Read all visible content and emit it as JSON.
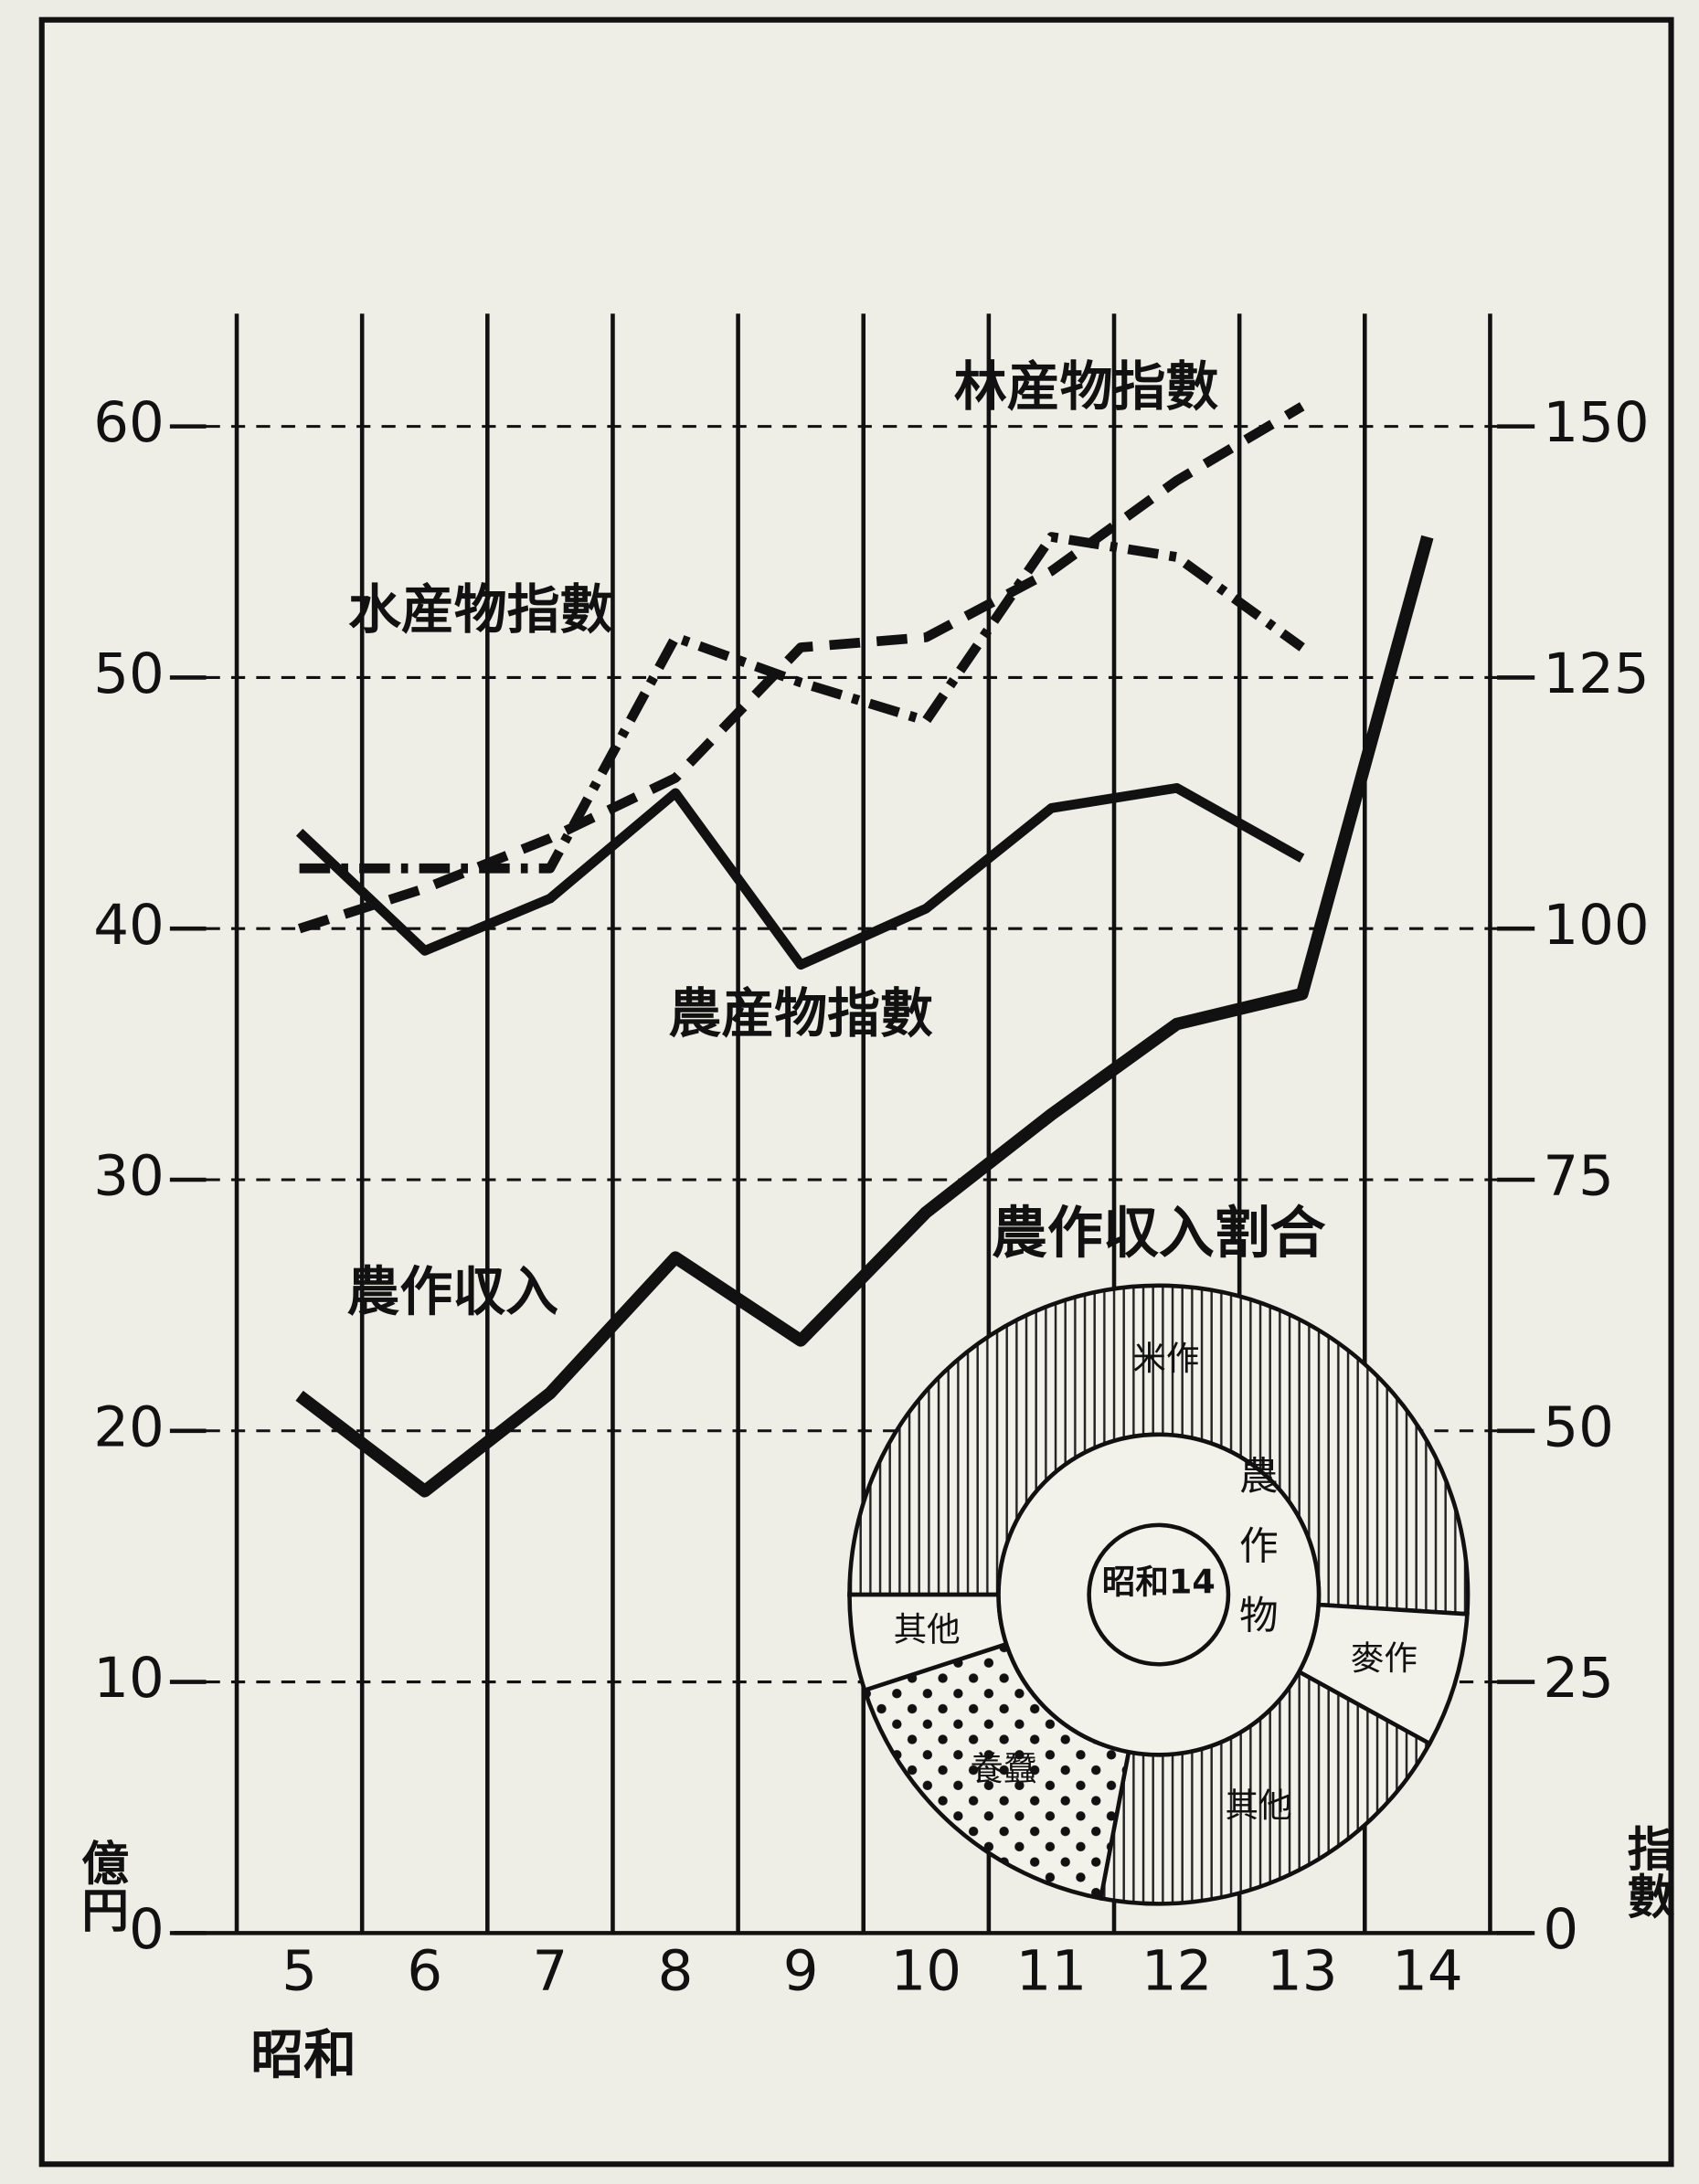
{
  "chart_data": [
    {
      "type": "line",
      "categories": [
        "5",
        "6",
        "7",
        "8",
        "9",
        "10",
        "11",
        "12",
        "13",
        "14"
      ],
      "xlabel": "昭和",
      "ylabel": "億円",
      "y2label": "指數",
      "ylim": [
        0,
        60
      ],
      "yticks": [
        0,
        10,
        20,
        30,
        40,
        50,
        60
      ],
      "y2lim": [
        0,
        150
      ],
      "y2ticks": [
        0,
        25,
        50,
        75,
        100,
        125,
        150
      ],
      "grid": true,
      "series": [
        {
          "name": "農作収入",
          "color": "#111111",
          "dash": "solid",
          "axis": "y",
          "values": [
            21.4,
            17.6,
            21.5,
            26.9,
            23.6,
            28.7,
            32.6,
            36.2,
            37.4,
            55.6
          ]
        },
        {
          "name": "農産物指數",
          "color": "#111111",
          "dash": "solid",
          "axis": "y2",
          "values": [
            109.6,
            97.8,
            103,
            113.5,
            96.4,
            102,
            112,
            114,
            107,
            null
          ]
        },
        {
          "name": "水産物指數",
          "color": "#111111",
          "dash": "dashdot",
          "axis": "y2",
          "values": [
            106,
            106,
            106,
            129,
            124.5,
            120.7,
            139,
            137,
            128,
            null
          ]
        },
        {
          "name": "林産物指數",
          "color": "#111111",
          "dash": "dashed",
          "axis": "y2",
          "values": [
            100,
            104,
            109,
            115,
            128,
            129,
            135.6,
            144.6,
            152,
            null
          ]
        }
      ]
    },
    {
      "type": "pie",
      "title": "農作収入割合",
      "center_label": "昭和14",
      "inner_label": "農作物",
      "categories": [
        "米作",
        "麥作",
        "其他",
        "養蠶",
        "其他"
      ],
      "values": [
        51,
        7,
        20,
        17,
        5
      ]
    }
  ]
}
